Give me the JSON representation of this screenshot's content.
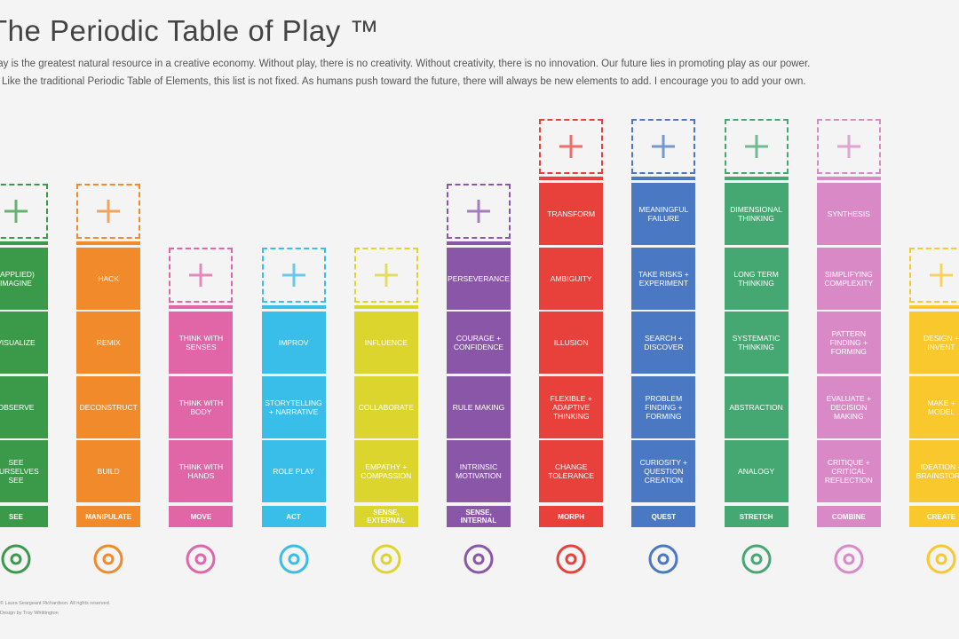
{
  "header": {
    "title": "The Periodic Table of Play ™",
    "intro": [
      "Play is the greatest natural resource in a creative economy. Without play, there is no creativity. Without creativity, there is no innovation. Our future lies in promoting play as our power.",
      "Like the traditional Periodic Table of Elements, this list is not fixed. As humans push toward the future, there will always be new elements to add. I encourage you to add your own."
    ]
  },
  "columns": [
    {
      "name": "SEE",
      "color": "#3a9a4a",
      "cells": [
        "(APPLIED) IMAGINE",
        "VISUALIZE",
        "OBSERVE",
        "SEE OURSELVES SEE"
      ]
    },
    {
      "name": "MANIPULATE",
      "color": "#f18a2b",
      "cells": [
        "HACK",
        "REMIX",
        "DECONSTRUCT",
        "BUILD"
      ]
    },
    {
      "name": "MOVE",
      "color": "#e066a8",
      "cells": [
        "THINK WITH SENSES",
        "THINK WITH BODY",
        "THINK WITH HANDS"
      ]
    },
    {
      "name": "ACT",
      "color": "#39bde9",
      "cells": [
        "IMPROV",
        "STORYTELLING + NARRATIVE",
        "ROLE PLAY"
      ]
    },
    {
      "name": "SENSE, EXTERNAL",
      "color": "#dcd52e",
      "cells": [
        "INFLUENCE",
        "COLLABORATE",
        "EMPATHY + COMPASSION"
      ]
    },
    {
      "name": "SENSE, INTERNAL",
      "color": "#8a56a8",
      "cells": [
        "PERSEVERANCE",
        "COURAGE + CONFIDENCE",
        "RULE MAKING",
        "INTRINSIC MOTIVATION"
      ]
    },
    {
      "name": "MORPH",
      "color": "#e8413c",
      "cells": [
        "TRANSFORM",
        "AMBIGUITY",
        "ILLUSION",
        "FLEXIBLE + ADAPTIVE THINKING",
        "CHANGE TOLERANCE"
      ]
    },
    {
      "name": "QUEST",
      "color": "#4a78c2",
      "cells": [
        "MEANINGFUL FAILURE",
        "TAKE RISKS + EXPERIMENT",
        "SEARCH + DISCOVER",
        "PROBLEM FINDING + FORMING",
        "CURIOSITY + QUESTION CREATION"
      ]
    },
    {
      "name": "STRETCH",
      "color": "#45a771",
      "cells": [
        "DIMENSIONAL THINKING",
        "LONG TERM THINKING",
        "SYSTEMATIC THINKING",
        "ABSTRACTION",
        "ANALOGY"
      ]
    },
    {
      "name": "COMBINE",
      "color": "#d98ac6",
      "cells": [
        "SYNTHESIS",
        "SIMPLIFYING COMPLEXITY",
        "PATTERN FINDING + FORMING",
        "EVALUATE + DECISION MAKING",
        "CRITIQUE + CRITICAL REFLECTION"
      ]
    },
    {
      "name": "CREATE",
      "color": "#f9c82c",
      "cells": [
        "DESIGN + INVENT",
        "MAKE + MODEL",
        "IDEATION + BRAINSTORM"
      ]
    }
  ],
  "footer": [
    "© Laura Seargeant Richardson. All rights reserved.",
    "Design by Troy Whittington"
  ]
}
